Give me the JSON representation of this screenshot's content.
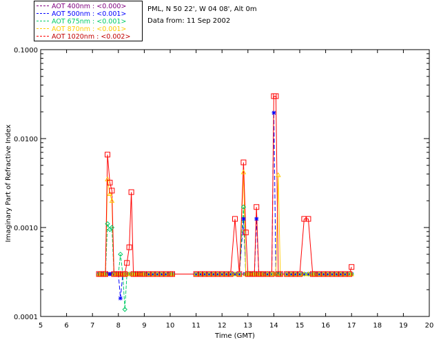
{
  "legend": [
    {
      "name": "AOT  400nm : <0.000>",
      "color": "#800080"
    },
    {
      "name": "AOT  500nm : <0.001>",
      "color": "#0000ff"
    },
    {
      "name": "AOT  675nm : <0.001>",
      "color": "#00cc66"
    },
    {
      "name": "AOT  870nm : <0.001>",
      "color": "#ffcc00"
    },
    {
      "name": "AOT 1020nm : <0.002>",
      "color": "#ff0000"
    }
  ],
  "info": {
    "site": "PML, N 50 22', W 04 08', Alt 0m",
    "date": "Data from: 11 Sep 2002"
  },
  "chart_data": {
    "type": "line",
    "xlabel": "Time (GMT)",
    "ylabel": "Imaginary Part of Refractive Index",
    "xlim": [
      5,
      20
    ],
    "ylim": [
      0.0001,
      0.1
    ],
    "yscale": "log",
    "xticks": [
      "5",
      "6",
      "7",
      "8",
      "9",
      "10",
      "11",
      "12",
      "13",
      "14",
      "15",
      "16",
      "17",
      "18",
      "19",
      "20"
    ],
    "yticks": [
      "0.0001",
      "0.0010",
      "0.0100",
      "0.1000"
    ],
    "x": [
      7.25,
      7.33,
      7.42,
      7.5,
      7.58,
      7.67,
      7.75,
      7.83,
      7.92,
      8.0,
      8.08,
      8.17,
      8.25,
      8.33,
      8.42,
      8.5,
      8.58,
      8.67,
      8.75,
      8.83,
      8.92,
      9.0,
      9.17,
      9.33,
      9.5,
      9.67,
      9.83,
      10.0,
      10.08,
      11.0,
      11.17,
      11.33,
      11.5,
      11.67,
      11.83,
      12.0,
      12.17,
      12.33,
      12.5,
      12.67,
      12.83,
      12.92,
      13.0,
      13.08,
      13.17,
      13.25,
      13.33,
      13.42,
      13.5,
      13.58,
      13.75,
      13.92,
      14.0,
      14.08,
      14.17,
      14.25,
      14.5,
      14.67,
      14.83,
      15.0,
      15.17,
      15.33,
      15.5,
      15.58,
      15.75,
      15.92,
      16.08,
      16.25,
      16.42,
      16.58,
      16.75,
      16.92,
      17.0
    ],
    "series": [
      {
        "name": "AOT  400nm : <0.000>",
        "color": "#800080",
        "values": [
          0.0003,
          0.0003,
          0.0003,
          0.0003,
          0.0003,
          0.0003,
          0.0003,
          0.0003,
          0.0003,
          0.0003,
          0.0003,
          0.0003,
          0.0003,
          0.0003,
          0.0003,
          0.0003,
          0.0003,
          0.0003,
          0.0003,
          0.0003,
          0.0003,
          0.0003,
          0.0003,
          0.0003,
          0.0003,
          0.0003,
          0.0003,
          0.0003,
          0.0003,
          0.0003,
          0.0003,
          0.0003,
          0.0003,
          0.0003,
          0.0003,
          0.0003,
          0.0003,
          0.0003,
          0.0003,
          0.0003,
          0.0003,
          0.0003,
          0.0003,
          0.0003,
          0.0003,
          0.0003,
          0.0003,
          0.0003,
          0.0003,
          0.0003,
          0.0003,
          0.0003,
          0.0003,
          0.0003,
          0.0003,
          0.0003,
          0.0003,
          0.0003,
          0.0003,
          0.0003,
          0.0003,
          0.0003,
          0.0003,
          0.0003,
          0.0003,
          0.0003,
          0.0003,
          0.0003,
          0.0003,
          0.0003,
          0.0003,
          0.0003,
          0.0003
        ]
      },
      {
        "name": "AOT  500nm : <0.001>",
        "color": "#0000ff",
        "values": [
          0.0003,
          0.0003,
          0.0003,
          0.0003,
          0.0003,
          0.0003,
          0.0003,
          0.0003,
          0.0003,
          0.0003,
          0.00016,
          0.0003,
          0.0003,
          0.0003,
          0.0003,
          0.0003,
          0.0003,
          0.0003,
          0.0003,
          0.0003,
          0.0003,
          0.0003,
          0.0003,
          0.0003,
          0.0003,
          0.0003,
          0.0003,
          0.0003,
          0.0003,
          0.0003,
          0.0003,
          0.0003,
          0.0003,
          0.0003,
          0.0003,
          0.0003,
          0.0003,
          0.0003,
          0.0003,
          0.0003,
          0.00125,
          0.0003,
          0.0003,
          0.0003,
          0.0003,
          0.0003,
          0.00125,
          0.0003,
          0.0003,
          0.0003,
          0.0003,
          0.0003,
          0.0195,
          0.0003,
          0.0003,
          0.0003,
          0.0003,
          0.0003,
          0.0003,
          0.0003,
          0.0003,
          0.0003,
          0.0003,
          0.0003,
          0.0003,
          0.0003,
          0.0003,
          0.0003,
          0.0003,
          0.0003,
          0.0003,
          0.0003,
          0.0003
        ]
      },
      {
        "name": "AOT  675nm : <0.001>",
        "color": "#00cc66",
        "values": [
          0.0003,
          0.0003,
          0.0003,
          0.0003,
          0.0011,
          0.00095,
          0.001,
          0.0003,
          0.0003,
          0.0003,
          0.0005,
          0.0003,
          0.00012,
          0.0003,
          0.0003,
          0.0003,
          0.0003,
          0.0003,
          0.0003,
          0.0003,
          0.0003,
          0.0003,
          0.0003,
          0.0003,
          0.0003,
          0.0003,
          0.0003,
          0.0003,
          0.0003,
          0.0003,
          0.0003,
          0.0003,
          0.0003,
          0.0003,
          0.0003,
          0.0003,
          0.0003,
          0.0003,
          0.0003,
          0.0003,
          0.0017,
          0.0003,
          0.0003,
          0.0003,
          0.0003,
          0.0003,
          0.0003,
          0.0003,
          0.0003,
          0.0003,
          0.0003,
          0.0003,
          0.0003,
          0.0003,
          0.0003,
          0.0003,
          0.0003,
          0.0003,
          0.0003,
          0.0003,
          0.0003,
          0.0003,
          0.0003,
          0.0003,
          0.0003,
          0.0003,
          0.0003,
          0.0003,
          0.0003,
          0.0003,
          0.0003,
          0.0003,
          0.0003
        ]
      },
      {
        "name": "AOT  870nm : <0.001>",
        "color": "#ffcc00",
        "values": [
          0.0003,
          0.0003,
          0.0003,
          0.0003,
          0.0035,
          0.0024,
          0.002,
          0.0003,
          0.0003,
          0.0003,
          0.0003,
          0.0003,
          0.0003,
          0.0003,
          0.0003,
          0.0003,
          0.0003,
          0.0003,
          0.0003,
          0.0003,
          0.0003,
          0.0003,
          0.0003,
          0.0003,
          0.0003,
          0.0003,
          0.0003,
          0.0003,
          0.0003,
          0.0003,
          0.0003,
          0.0003,
          0.0003,
          0.0003,
          0.0003,
          0.0003,
          0.0003,
          0.0003,
          0.0003,
          0.0003,
          0.0042,
          0.0003,
          0.0003,
          0.0003,
          0.0003,
          0.0003,
          0.0003,
          0.0003,
          0.0003,
          0.0003,
          0.0003,
          0.0003,
          0.0003,
          0.0003,
          0.0039,
          0.0003,
          0.0003,
          0.0003,
          0.0003,
          0.0003,
          0.0003,
          0.0003,
          0.0003,
          0.0003,
          0.0003,
          0.0003,
          0.0003,
          0.0003,
          0.0003,
          0.0003,
          0.0003,
          0.0003,
          0.0003
        ]
      },
      {
        "name": "AOT 1020nm : <0.002>",
        "color": "#ff0000",
        "values": [
          0.0003,
          0.0003,
          0.0003,
          0.0003,
          0.0066,
          0.0032,
          0.0026,
          0.0003,
          0.0003,
          0.0003,
          0.0003,
          0.0003,
          0.0003,
          0.0004,
          0.0006,
          0.0025,
          0.0003,
          0.0003,
          0.0003,
          0.0003,
          0.0003,
          0.0003,
          0.0003,
          0.0003,
          0.0003,
          0.0003,
          0.0003,
          0.0003,
          0.0003,
          0.0003,
          0.0003,
          0.0003,
          0.0003,
          0.0003,
          0.0003,
          0.0003,
          0.0003,
          0.0003,
          0.00125,
          0.0003,
          0.0054,
          0.00088,
          0.0003,
          0.0003,
          0.0003,
          0.0003,
          0.0017,
          0.0003,
          0.0003,
          0.0003,
          0.0003,
          0.0003,
          0.03,
          0.03,
          0.0003,
          0.0003,
          0.0003,
          0.0003,
          0.0003,
          0.0003,
          0.00125,
          0.00125,
          0.0003,
          0.0003,
          0.0003,
          0.0003,
          0.0003,
          0.0003,
          0.0003,
          0.0003,
          0.0003,
          0.0003,
          0.00036
        ]
      }
    ]
  }
}
